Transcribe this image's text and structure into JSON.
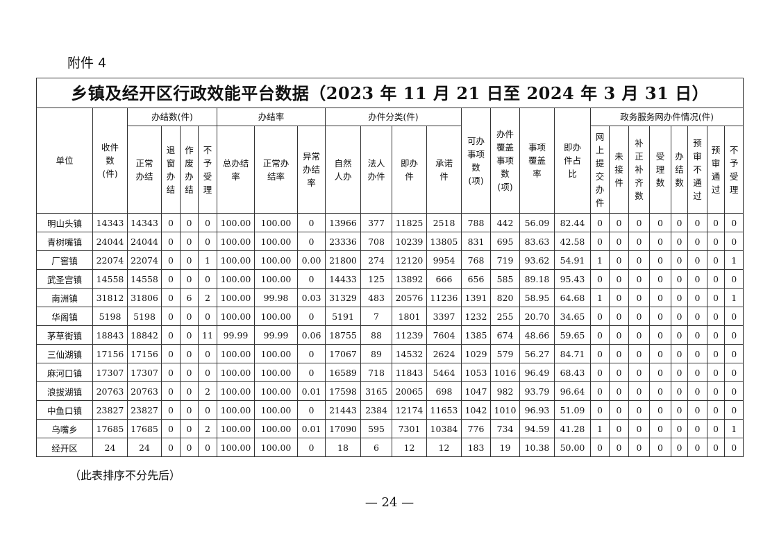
{
  "attachment_label": "附件 4",
  "table": {
    "title": "乡镇及经开区行政效能平台数据（2023 年 11 月 21 日至 2024 年 3 月 31 日）",
    "header_row1": [
      {
        "label": "单位",
        "rowspan": 2,
        "colspan": 1
      },
      {
        "label": "收件\n数\n(件)",
        "rowspan": 2,
        "colspan": 1
      },
      {
        "label": "办结数(件)",
        "rowspan": 1,
        "colspan": 4
      },
      {
        "label": "办结率",
        "rowspan": 1,
        "colspan": 3
      },
      {
        "label": "办件分类(件)",
        "rowspan": 1,
        "colspan": 4
      },
      {
        "label": "可办\n事项\n数\n(项)",
        "rowspan": 2,
        "colspan": 1
      },
      {
        "label": "办件\n覆盖\n事项\n数\n(项)",
        "rowspan": 2,
        "colspan": 1
      },
      {
        "label": "事项\n覆盖\n率",
        "rowspan": 2,
        "colspan": 1
      },
      {
        "label": "即办\n件占\n比",
        "rowspan": 2,
        "colspan": 1
      },
      {
        "label": "政务服务网办件情况(件)",
        "rowspan": 1,
        "colspan": 8
      }
    ],
    "header_row2": [
      "正常\n办结",
      "退\n窗\n办\n结",
      "作\n废\n办\n结",
      "不\n予\n受\n理",
      "总办结\n率",
      "正常办\n结率",
      "异常\n办结\n率",
      "自然\n人办",
      "法人\n办件",
      "即办\n件",
      "承诺\n件",
      "网\n上\n提\n交\n办\n件",
      "未\n接\n件",
      "补\n正\n补\n齐\n数",
      "受\n理\n数",
      "办\n结\n数",
      "预\n审\n不\n通\n过",
      "预\n审\n通\n过",
      "不\n予\n受\n理"
    ],
    "rows": [
      [
        "明山头镇",
        "14343",
        "14343",
        "0",
        "0",
        "0",
        "100.00",
        "100.00",
        "0",
        "13966",
        "377",
        "11825",
        "2518",
        "788",
        "442",
        "56.09",
        "82.44",
        "0",
        "0",
        "0",
        "0",
        "0",
        "0",
        "0",
        "0"
      ],
      [
        "青树嘴镇",
        "24044",
        "24044",
        "0",
        "0",
        "0",
        "100.00",
        "100.00",
        "0",
        "23336",
        "708",
        "10239",
        "13805",
        "831",
        "695",
        "83.63",
        "42.58",
        "0",
        "0",
        "0",
        "0",
        "0",
        "0",
        "0",
        "0"
      ],
      [
        "厂窖镇",
        "22074",
        "22074",
        "0",
        "0",
        "1",
        "100.00",
        "100.00",
        "0.00",
        "21800",
        "274",
        "12120",
        "9954",
        "768",
        "719",
        "93.62",
        "54.91",
        "1",
        "0",
        "0",
        "0",
        "0",
        "0",
        "0",
        "1"
      ],
      [
        "武圣宫镇",
        "14558",
        "14558",
        "0",
        "0",
        "0",
        "100.00",
        "100.00",
        "0",
        "14433",
        "125",
        "13892",
        "666",
        "656",
        "585",
        "89.18",
        "95.43",
        "0",
        "0",
        "0",
        "0",
        "0",
        "0",
        "0",
        "0"
      ],
      [
        "南洲镇",
        "31812",
        "31806",
        "0",
        "6",
        "2",
        "100.00",
        "99.98",
        "0.03",
        "31329",
        "483",
        "20576",
        "11236",
        "1391",
        "820",
        "58.95",
        "64.68",
        "1",
        "0",
        "0",
        "0",
        "0",
        "0",
        "0",
        "1"
      ],
      [
        "华阁镇",
        "5198",
        "5198",
        "0",
        "0",
        "0",
        "100.00",
        "100.00",
        "0",
        "5191",
        "7",
        "1801",
        "3397",
        "1232",
        "255",
        "20.70",
        "34.65",
        "0",
        "0",
        "0",
        "0",
        "0",
        "0",
        "0",
        "0"
      ],
      [
        "茅草街镇",
        "18843",
        "18842",
        "0",
        "0",
        "11",
        "99.99",
        "99.99",
        "0.06",
        "18755",
        "88",
        "11239",
        "7604",
        "1385",
        "674",
        "48.66",
        "59.65",
        "0",
        "0",
        "0",
        "0",
        "0",
        "0",
        "0",
        "0"
      ],
      [
        "三仙湖镇",
        "17156",
        "17156",
        "0",
        "0",
        "0",
        "100.00",
        "100.00",
        "0",
        "17067",
        "89",
        "14532",
        "2624",
        "1029",
        "579",
        "56.27",
        "84.71",
        "0",
        "0",
        "0",
        "0",
        "0",
        "0",
        "0",
        "0"
      ],
      [
        "麻河口镇",
        "17307",
        "17307",
        "0",
        "0",
        "0",
        "100.00",
        "100.00",
        "0",
        "16589",
        "718",
        "11843",
        "5464",
        "1053",
        "1016",
        "96.49",
        "68.43",
        "0",
        "0",
        "0",
        "0",
        "0",
        "0",
        "0",
        "0"
      ],
      [
        "浪拔湖镇",
        "20763",
        "20763",
        "0",
        "0",
        "2",
        "100.00",
        "100.00",
        "0.01",
        "17598",
        "3165",
        "20065",
        "698",
        "1047",
        "982",
        "93.79",
        "96.64",
        "0",
        "0",
        "0",
        "0",
        "0",
        "0",
        "0",
        "0"
      ],
      [
        "中鱼口镇",
        "23827",
        "23827",
        "0",
        "0",
        "0",
        "100.00",
        "100.00",
        "0",
        "21443",
        "2384",
        "12174",
        "11653",
        "1042",
        "1010",
        "96.93",
        "51.09",
        "0",
        "0",
        "0",
        "0",
        "0",
        "0",
        "0",
        "0"
      ],
      [
        "乌嘴乡",
        "17685",
        "17685",
        "0",
        "0",
        "2",
        "100.00",
        "100.00",
        "0.01",
        "17090",
        "595",
        "7301",
        "10384",
        "776",
        "734",
        "94.59",
        "41.28",
        "1",
        "0",
        "0",
        "0",
        "0",
        "0",
        "0",
        "1"
      ],
      [
        "经开区",
        "24",
        "24",
        "0",
        "0",
        "0",
        "100.00",
        "100.00",
        "0",
        "18",
        "6",
        "12",
        "12",
        "183",
        "19",
        "10.38",
        "50.00",
        "0",
        "0",
        "0",
        "0",
        "0",
        "0",
        "0",
        "0"
      ]
    ]
  },
  "note": "（此表排序不分先后）",
  "page_number": "— 24 —"
}
